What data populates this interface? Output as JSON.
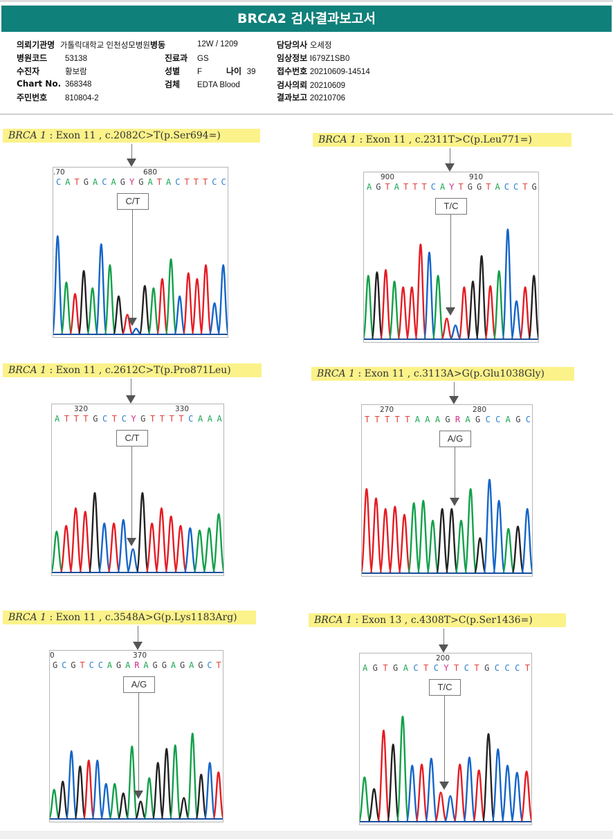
{
  "report": {
    "title": "BRCA2 검사결과보고서",
    "fields": {
      "institution": {
        "label": "의뢰기관명",
        "value": "가톨릭대학교 인천성모병원"
      },
      "ward": {
        "label": "병동",
        "value": "12W / 1209"
      },
      "doctor": {
        "label": "담당의사",
        "value": "오세정"
      },
      "hospital_code": {
        "label": "병원코드",
        "value": "53138"
      },
      "department": {
        "label": "진료과",
        "value": "GS"
      },
      "clinical_info": {
        "label": "임상정보",
        "value": "I679Z1SB0"
      },
      "patient": {
        "label": "수진자",
        "value": "황보람"
      },
      "sex": {
        "label": "성별",
        "value": "F"
      },
      "age": {
        "label": "나이",
        "value": "39"
      },
      "receipt_no": {
        "label": "접수번호",
        "value": "20210609-14514"
      },
      "chart_no": {
        "label": "Chart No.",
        "value": "368348"
      },
      "specimen": {
        "label": "검체",
        "value": "EDTA Blood"
      },
      "test_request": {
        "label": "검사의뢰",
        "value": "20210609"
      },
      "resident_no": {
        "label": "주민번호",
        "value": "810804-2"
      },
      "result_report": {
        "label": "결과보고",
        "value": "20210706"
      }
    }
  },
  "base_colors": {
    "A": "#1aa552",
    "C": "#2f7fd0",
    "G": "#444444",
    "T": "#e2403b",
    "Y": "#d0308a",
    "R": "#d0308a"
  },
  "trace_colors": {
    "A": "#13a04a",
    "C": "#1565c8",
    "G": "#222222",
    "T": "#e51c23"
  },
  "variants": [
    {
      "gene": "BRCA 1",
      "sep": " : ",
      "desc": "Exon 11 , c.2082C>T(p.Ser694=)",
      "pos_left": ".70",
      "pos_right": "680",
      "bases": [
        "C",
        "A",
        "T",
        "G",
        "A",
        "C",
        "A",
        "G",
        "Y",
        "G",
        "A",
        "T",
        "A",
        "C",
        "T",
        "T",
        "T",
        "C",
        "C"
      ],
      "call": "C/T",
      "peaks": [
        [
          "C",
          0.85
        ],
        [
          "A",
          0.45
        ],
        [
          "T",
          0.35
        ],
        [
          "G",
          0.55
        ],
        [
          "A",
          0.4
        ],
        [
          "C",
          0.78
        ],
        [
          "A",
          0.6
        ],
        [
          "G",
          0.33
        ],
        [
          "T",
          0.17
        ],
        [
          "C",
          0.05
        ],
        [
          "G",
          0.42
        ],
        [
          "A",
          0.4
        ],
        [
          "T",
          0.48
        ],
        [
          "A",
          0.65
        ],
        [
          "C",
          0.33
        ],
        [
          "T",
          0.53
        ],
        [
          "T",
          0.48
        ],
        [
          "T",
          0.6
        ],
        [
          "C",
          0.27
        ],
        [
          "C",
          0.6
        ]
      ]
    },
    {
      "gene": "BRCA 1",
      "sep": " : ",
      "desc": "Exon 11 , c.2311T>C(p.Leu771=)",
      "pos_left": "900",
      "pos_right": "910",
      "bases": [
        "A",
        "G",
        "T",
        "A",
        "T",
        "T",
        "T",
        "C",
        "A",
        "Y",
        "T",
        "G",
        "G",
        "T",
        "A",
        "C",
        "C",
        "T",
        "G"
      ],
      "call": "T/C",
      "peaks": [
        [
          "A",
          0.55
        ],
        [
          "G",
          0.58
        ],
        [
          "T",
          0.6
        ],
        [
          "A",
          0.5
        ],
        [
          "T",
          0.45
        ],
        [
          "T",
          0.45
        ],
        [
          "T",
          0.82
        ],
        [
          "C",
          0.75
        ],
        [
          "A",
          0.55
        ],
        [
          "T",
          0.18
        ],
        [
          "C",
          0.12
        ],
        [
          "T",
          0.45
        ],
        [
          "G",
          0.5
        ],
        [
          "G",
          0.72
        ],
        [
          "T",
          0.46
        ],
        [
          "A",
          0.59
        ],
        [
          "C",
          0.95
        ],
        [
          "C",
          0.33
        ],
        [
          "T",
          0.45
        ],
        [
          "G",
          0.55
        ]
      ]
    },
    {
      "gene": "BRCA 1",
      "sep": " : ",
      "desc": "Exon 11 , c.2612C>T(p.Pro871Leu)",
      "pos_left": "320",
      "pos_right": "330",
      "bases": [
        "A",
        "T",
        "T",
        "T",
        "G",
        "C",
        "T",
        "C",
        "Y",
        "G",
        "T",
        "T",
        "T",
        "T",
        "C",
        "A",
        "A",
        "A"
      ],
      "call": "C/T",
      "peaks": [
        [
          "A",
          0.35
        ],
        [
          "T",
          0.4
        ],
        [
          "T",
          0.55
        ],
        [
          "T",
          0.52
        ],
        [
          "G",
          0.68
        ],
        [
          "C",
          0.42
        ],
        [
          "T",
          0.42
        ],
        [
          "C",
          0.45
        ],
        [
          "C",
          0.2
        ],
        [
          "G",
          0.68
        ],
        [
          "T",
          0.42
        ],
        [
          "T",
          0.55
        ],
        [
          "T",
          0.48
        ],
        [
          "T",
          0.4
        ],
        [
          "C",
          0.38
        ],
        [
          "A",
          0.36
        ],
        [
          "A",
          0.38
        ],
        [
          "A",
          0.5
        ]
      ]
    },
    {
      "gene": "BRCA 1",
      "sep": " : ",
      "desc": "Exon 11 , c.3113A>G(p.Glu1038Gly)",
      "pos_left": "270",
      "pos_right": "280",
      "bases": [
        "T",
        "T",
        "T",
        "T",
        "T",
        "A",
        "A",
        "A",
        "G",
        "R",
        "A",
        "G",
        "C",
        "C",
        "A",
        "G",
        "C"
      ],
      "call": "A/G",
      "peaks": [
        [
          "T",
          0.72
        ],
        [
          "T",
          0.64
        ],
        [
          "T",
          0.55
        ],
        [
          "T",
          0.57
        ],
        [
          "T",
          0.5
        ],
        [
          "A",
          0.6
        ],
        [
          "A",
          0.62
        ],
        [
          "A",
          0.45
        ],
        [
          "G",
          0.55
        ],
        [
          "G",
          0.55
        ],
        [
          "A",
          0.45
        ],
        [
          "A",
          0.72
        ],
        [
          "G",
          0.3
        ],
        [
          "C",
          0.8
        ],
        [
          "C",
          0.62
        ],
        [
          "A",
          0.38
        ],
        [
          "G",
          0.4
        ],
        [
          "C",
          0.55
        ]
      ]
    },
    {
      "gene": "BRCA 1",
      "sep": " : ",
      "desc": "Exon 11 , c.3548A>G(p.Lys1183Arg)",
      "pos_left": "0",
      "pos_right": "370",
      "bases": [
        "G",
        "C",
        "G",
        "T",
        "C",
        "C",
        "A",
        "G",
        "A",
        "R",
        "A",
        "G",
        "G",
        "A",
        "G",
        "A",
        "G",
        "C",
        "T"
      ],
      "call": "A/G",
      "peaks": [
        [
          "A",
          0.25
        ],
        [
          "G",
          0.32
        ],
        [
          "C",
          0.58
        ],
        [
          "G",
          0.45
        ],
        [
          "T",
          0.5
        ],
        [
          "C",
          0.5
        ],
        [
          "C",
          0.3
        ],
        [
          "A",
          0.3
        ],
        [
          "G",
          0.22
        ],
        [
          "A",
          0.62
        ],
        [
          "G",
          0.15
        ],
        [
          "A",
          0.35
        ],
        [
          "G",
          0.48
        ],
        [
          "G",
          0.6
        ],
        [
          "A",
          0.63
        ],
        [
          "G",
          0.18
        ],
        [
          "A",
          0.73
        ],
        [
          "G",
          0.38
        ],
        [
          "C",
          0.48
        ],
        [
          "T",
          0.4
        ]
      ]
    },
    {
      "gene": "BRCA 1",
      "sep": " : ",
      "desc": "Exon 13 , c.4308T>C(p.Ser1436=)",
      "pos_left": "",
      "pos_right": "200",
      "bases": [
        "A",
        "G",
        "T",
        "G",
        "A",
        "C",
        "T",
        "C",
        "Y",
        "T",
        "C",
        "T",
        "G",
        "C",
        "C",
        "C",
        "T"
      ],
      "call": "T/C",
      "peaks": [
        [
          "A",
          0.38
        ],
        [
          "G",
          0.28
        ],
        [
          "T",
          0.78
        ],
        [
          "G",
          0.66
        ],
        [
          "A",
          0.9
        ],
        [
          "C",
          0.48
        ],
        [
          "T",
          0.49
        ],
        [
          "C",
          0.54
        ],
        [
          "T",
          0.25
        ],
        [
          "C",
          0.22
        ],
        [
          "T",
          0.49
        ],
        [
          "C",
          0.55
        ],
        [
          "T",
          0.44
        ],
        [
          "G",
          0.75
        ],
        [
          "C",
          0.62
        ],
        [
          "C",
          0.48
        ],
        [
          "C",
          0.42
        ],
        [
          "T",
          0.43
        ]
      ]
    }
  ]
}
